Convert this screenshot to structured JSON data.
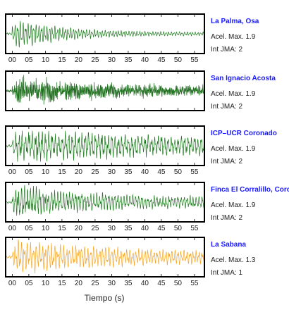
{
  "chart_data": {
    "type": "line",
    "xlabel": "Tiempo (s)",
    "xlim": [
      -2,
      58
    ],
    "x_ticks": [
      "00",
      "05",
      "10",
      "15",
      "20",
      "25",
      "30",
      "35",
      "40",
      "45",
      "50",
      "55"
    ],
    "grid": false,
    "panels": [
      {
        "name": "La Palma, Osa",
        "acel_label": "Acel. Max. 1.9",
        "jma_label": "Int JMA: 2",
        "color": "#1f7a1f",
        "peak_acceleration": 1.9,
        "jma_intensity": 2
      },
      {
        "name": "San Ignacio Acosta",
        "acel_label": "Acel. Max. 1.9",
        "jma_label": "Int JMA: 2",
        "color": "#1f6f1f",
        "peak_acceleration": 1.9,
        "jma_intensity": 2
      },
      {
        "name": "ICP–UCR Coronado",
        "acel_label": "Acel. Max. 1.9",
        "jma_label": "Int JMA: 2",
        "color": "#1f7a1f",
        "peak_acceleration": 1.9,
        "jma_intensity": 2
      },
      {
        "name": "Finca El Corralillo, Coronado",
        "acel_label": "Acel. Max. 1.9",
        "jma_label": "Int JMA: 2",
        "color": "#1f7a1f",
        "peak_acceleration": 1.9,
        "jma_intensity": 2
      },
      {
        "name": "La Sabana",
        "acel_label": "Acel. Max. 1.3",
        "jma_label": "Int JMA: 1",
        "color": "#f5a623",
        "peak_acceleration": 1.3,
        "jma_intensity": 1
      }
    ]
  }
}
